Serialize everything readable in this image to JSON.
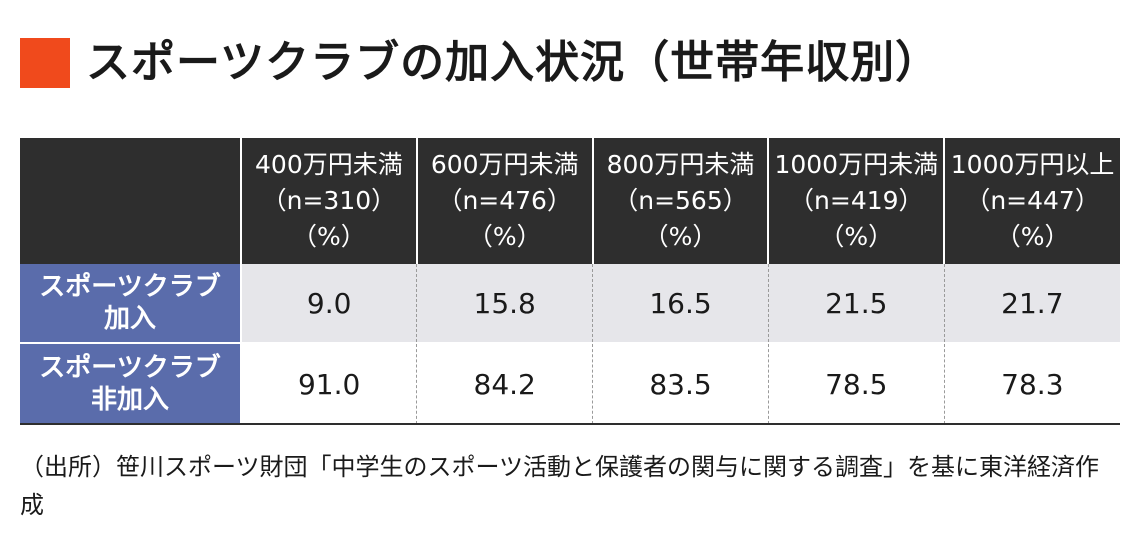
{
  "colors": {
    "title_square": "#f04a1c",
    "header_bg": "#2e2e2e",
    "row_label_bg": "#5a6cab",
    "row1_bg": "#e6e6ea",
    "row2_bg": "#ffffff"
  },
  "chart_data": {
    "type": "table",
    "title": "スポーツクラブの加入状況（世帯年収別）",
    "columns": [
      {
        "label": "400万円未満",
        "n": "（n=310）",
        "unit": "（%）"
      },
      {
        "label": "600万円未満",
        "n": "（n=476）",
        "unit": "（%）"
      },
      {
        "label": "800万円未満",
        "n": "（n=565）",
        "unit": "（%）"
      },
      {
        "label": "1000万円未満",
        "n": "（n=419）",
        "unit": "（%）"
      },
      {
        "label": "1000万円以上",
        "n": "（n=447）",
        "unit": "（%）"
      }
    ],
    "rows": [
      {
        "label_line1": "スポーツクラブ",
        "label_line2": "加入",
        "values": [
          "9.0",
          "15.8",
          "16.5",
          "21.5",
          "21.7"
        ]
      },
      {
        "label_line1": "スポーツクラブ",
        "label_line2": "非加入",
        "values": [
          "91.0",
          "84.2",
          "83.5",
          "78.5",
          "78.3"
        ]
      }
    ],
    "source": "（出所）笹川スポーツ財団「中学生のスポーツ活動と保護者の関与に関する調査」を基に東洋経済作成"
  }
}
